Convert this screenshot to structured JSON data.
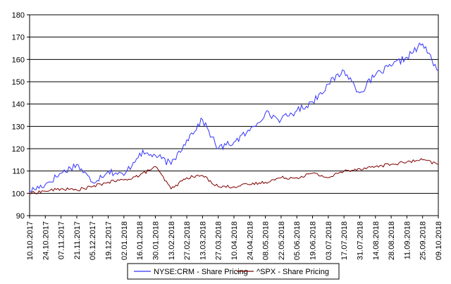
{
  "chart_data": {
    "type": "line",
    "title": "",
    "xlabel": "",
    "ylabel": "",
    "ylim": [
      90,
      180
    ],
    "yticks": [
      90,
      100,
      110,
      120,
      130,
      140,
      150,
      160,
      170,
      180
    ],
    "grid": "horizontal",
    "legend_position": "bottom",
    "x": [
      "10.10.2017",
      "24.10.2017",
      "07.11.2017",
      "21.11.2017",
      "05.12.2017",
      "19.12.2017",
      "02.01.2018",
      "16.01.2018",
      "30.01.2018",
      "13.02.2018",
      "27.02.2018",
      "13.03.2018",
      "27.03.2018",
      "10.04.2018",
      "24.04.2018",
      "08.05.2018",
      "22.05.2018",
      "05.06.2018",
      "19.06.2018",
      "03.07.2018",
      "17.07.2018",
      "31.07.2018",
      "14.08.2018",
      "28.08.2018",
      "11.09.2018",
      "25.09.2018",
      "09.10.2018"
    ],
    "series": [
      {
        "name": "NYSE:CRM - Share Pricing",
        "color": "#3333ff",
        "values": [
          101,
          104,
          109,
          113,
          105,
          110,
          108,
          118,
          117,
          113,
          124,
          133,
          120,
          123,
          128,
          136,
          133,
          137,
          141,
          149,
          155,
          145,
          153,
          157,
          161,
          167,
          155
        ]
      },
      {
        "name": "^SPX - Share Pricing",
        "color": "#800000",
        "values": [
          100,
          101,
          102,
          101.5,
          103,
          105,
          106,
          108,
          112,
          102,
          107,
          108,
          103,
          103,
          104,
          105,
          107,
          107,
          109,
          107,
          110,
          111,
          112,
          113,
          114,
          115,
          113
        ]
      }
    ]
  }
}
